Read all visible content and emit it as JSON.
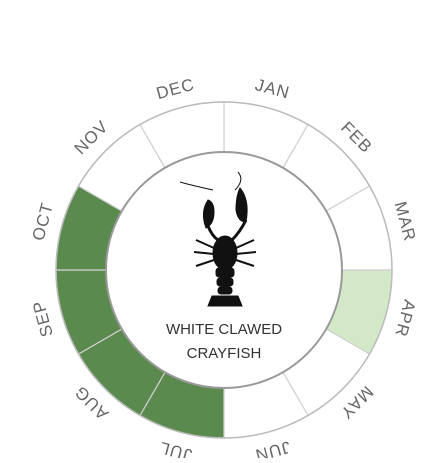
{
  "months": [
    {
      "label": "JAN",
      "fill": "#ffffff"
    },
    {
      "label": "FEB",
      "fill": "#ffffff"
    },
    {
      "label": "MAR",
      "fill": "#ffffff"
    },
    {
      "label": "APR",
      "fill": "#d3e8c6"
    },
    {
      "label": "MAY",
      "fill": "#ffffff"
    },
    {
      "label": "JUN",
      "fill": "#ffffff"
    },
    {
      "label": "JUL",
      "fill": "#5b8a4f"
    },
    {
      "label": "AUG",
      "fill": "#5b8a4f"
    },
    {
      "label": "SEP",
      "fill": "#5b8a4f"
    },
    {
      "label": "OCT",
      "fill": "#5b8a4f"
    },
    {
      "label": "NOV",
      "fill": "#ffffff"
    },
    {
      "label": "DEC",
      "fill": "#ffffff"
    }
  ],
  "species": {
    "name_lines": [
      "WHITE CLAWED",
      "CRAYFISH"
    ]
  }
}
